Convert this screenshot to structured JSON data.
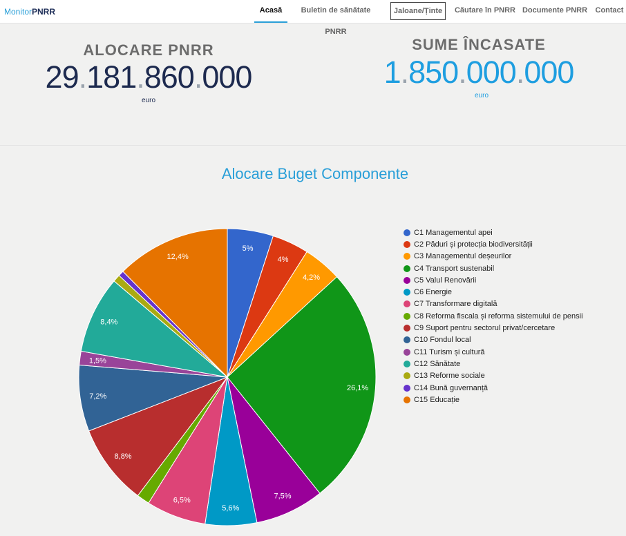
{
  "header": {
    "logo_part1": "Monitor",
    "logo_part2": "PNRR",
    "nav": [
      "Acasă",
      "Buletin de sănătate PNRR",
      "Jaloane/Ținte",
      "Căutare în PNRR",
      "Documente PNRR",
      "Contact"
    ],
    "active": "Acasă"
  },
  "stats": {
    "allocation": {
      "label": "ALOCARE PNRR",
      "value": "29.181.860.000",
      "unit": "euro",
      "color": "#1d2a4f"
    },
    "received": {
      "label": "SUME ÎNCASATE",
      "value": "1.850.000.000",
      "unit": "euro",
      "color": "#1e9ee0"
    }
  },
  "chart_data": {
    "type": "pie",
    "title": "Alocare Buget Componente",
    "legend_position": "right",
    "slices": [
      {
        "name": "C1 Managementul apei",
        "value": 5.0,
        "label": "5%",
        "color": "#3366cc"
      },
      {
        "name": "C2 Păduri și protecția biodiversității",
        "value": 4.0,
        "label": "4%",
        "color": "#dc3912"
      },
      {
        "name": "C3 Managementul deșeurilor",
        "value": 4.2,
        "label": "4,2%",
        "color": "#ff9900"
      },
      {
        "name": "C4 Transport sustenabil",
        "value": 26.1,
        "label": "26,1%",
        "color": "#109618"
      },
      {
        "name": "C5 Valul Renovării",
        "value": 7.5,
        "label": "7,5%",
        "color": "#990099"
      },
      {
        "name": "C6 Energie",
        "value": 5.6,
        "label": "5,6%",
        "color": "#0099c6"
      },
      {
        "name": "C7 Transformare digitală",
        "value": 6.5,
        "label": "6,5%",
        "color": "#dd4477"
      },
      {
        "name": "C8 Reforma fiscala și reforma sistemului de pensii",
        "value": 1.4,
        "label": "",
        "color": "#66aa00"
      },
      {
        "name": "C9 Suport pentru sectorul privat/cercetare",
        "value": 8.8,
        "label": "8,8%",
        "color": "#b82e2e"
      },
      {
        "name": "C10 Fondul local",
        "value": 7.2,
        "label": "7,2%",
        "color": "#316395"
      },
      {
        "name": "C11 Turism și cultură",
        "value": 1.5,
        "label": "1,5%",
        "color": "#994499"
      },
      {
        "name": "C12 Sănătate",
        "value": 8.4,
        "label": "8,4%",
        "color": "#22aa99"
      },
      {
        "name": "C13 Reforme sociale",
        "value": 0.8,
        "label": "",
        "color": "#aaaa11"
      },
      {
        "name": "C14 Bună guvernanță",
        "value": 0.6,
        "label": "",
        "color": "#6633cc"
      },
      {
        "name": "C15 Educație",
        "value": 12.4,
        "label": "12,4%",
        "color": "#e67300"
      }
    ]
  }
}
